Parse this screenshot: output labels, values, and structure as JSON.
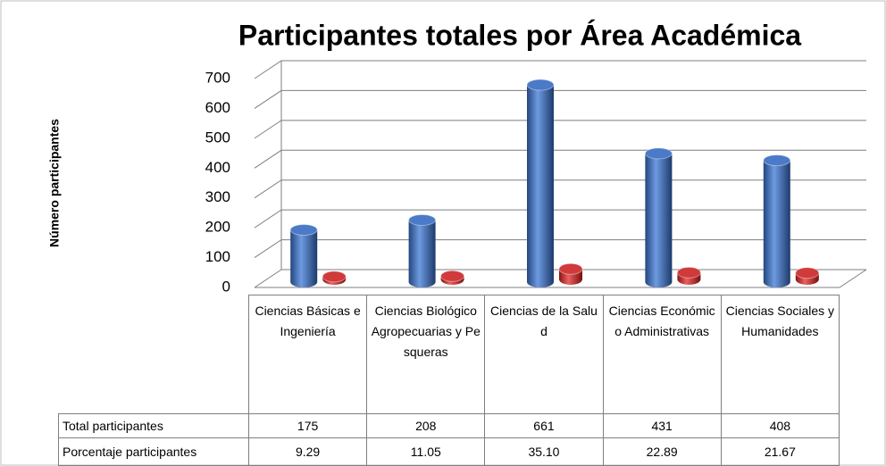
{
  "chart_data": {
    "type": "bar3d",
    "title": "Participantes totales por Área Académica",
    "y_label": "Número participantes",
    "categories": [
      "Ciencias Básicas e Ingeniería",
      "Ciencias Biológico Agropecuarias y Pesqueras",
      "Ciencias de la Salud",
      "Ciencias Económico Administrativas",
      "Ciencias Sociales y Humanidades"
    ],
    "series": [
      {
        "name": "Total participantes",
        "color": "#4a7ac8",
        "values": [
          175,
          208,
          661,
          431,
          408
        ]
      },
      {
        "name": "Porcentaje participantes",
        "color": "#d03a3a",
        "values": [
          9.29,
          11.05,
          35.1,
          22.89,
          21.67
        ],
        "value_labels": [
          "9.29",
          "11.05",
          "35.10",
          "22.89",
          "21.67"
        ]
      }
    ],
    "ylim": [
      0,
      700
    ],
    "yticks": [
      0,
      100,
      200,
      300,
      400,
      500,
      600,
      700
    ],
    "grid": true
  }
}
